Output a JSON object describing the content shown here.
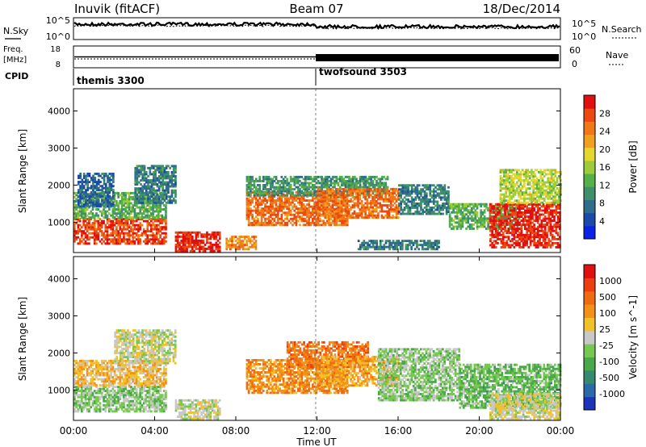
{
  "header": {
    "station": "Inuvik (fitACF)",
    "beam": "Beam 07",
    "date": "18/Dec/2014"
  },
  "strips": {
    "nsky_label": "N.Sky",
    "nsearch_label": "N.Search",
    "nsky_ticks": [
      "10^5",
      "10^0"
    ],
    "nsky_right_ticks": [
      "10^5",
      "10^0"
    ],
    "freq_label": "Freq.",
    "freq_unit": "[MHz]",
    "freq_ticks": [
      "18",
      "8"
    ],
    "nave_label": "Nave",
    "nave_ticks": [
      "60",
      "0"
    ],
    "cpid_label": "CPID",
    "cpid_entries": [
      {
        "name": "themis 3300",
        "start_hour": 0
      },
      {
        "name": "twofsound 3503",
        "start_hour": 12
      }
    ]
  },
  "axes": {
    "ylabel": "Slant Range [km]",
    "xlabel": "Time UT",
    "y_ticks": [
      "1000",
      "2000",
      "3000",
      "4000"
    ],
    "x_ticks": [
      "00:00",
      "04:00",
      "08:00",
      "12:00",
      "16:00",
      "20:00",
      "00:00"
    ]
  },
  "colorbars": {
    "power": {
      "label": "Power [dB]",
      "ticks": [
        "28",
        "24",
        "20",
        "16",
        "12",
        "8",
        "4"
      ],
      "colors": [
        "#0a22e6",
        "#1b4aa8",
        "#2f6d8a",
        "#3f8f6a",
        "#55b04a",
        "#9ccc3a",
        "#e2d830",
        "#f0a020",
        "#f07818",
        "#ea4a10",
        "#e01010"
      ]
    },
    "velocity": {
      "label": "Velocity [m s^-1]",
      "ticks": [
        "1000",
        "500",
        "100",
        "25",
        "-25",
        "-100",
        "-500",
        "-1000"
      ],
      "colors": [
        "#1c35b8",
        "#2a6aa8",
        "#358a6e",
        "#48a84a",
        "#76c850",
        "#c8c8c8",
        "#f2c028",
        "#f39018",
        "#f06a12",
        "#ec3e10",
        "#e01010"
      ]
    }
  },
  "chart_data": [
    {
      "type": "heatmap",
      "title": "Power",
      "xlabel": "Time UT",
      "ylabel": "Slant Range [km]",
      "xlim": [
        0,
        24
      ],
      "ylim": [
        180,
        4600
      ],
      "zlabel": "Power [dB]",
      "zlim": [
        0,
        30
      ],
      "series": [
        {
          "t": [
            0,
            4.5
          ],
          "range": [
            400,
            1100
          ],
          "value": 26
        },
        {
          "t": [
            0,
            4.5
          ],
          "range": [
            1100,
            1800
          ],
          "value": 12
        },
        {
          "t": [
            0.2,
            2
          ],
          "range": [
            1400,
            2300
          ],
          "value": 6
        },
        {
          "t": [
            3,
            5
          ],
          "range": [
            1500,
            2500
          ],
          "value": 8
        },
        {
          "t": [
            5,
            7.2
          ],
          "range": [
            200,
            700
          ],
          "value": 28
        },
        {
          "t": [
            7.5,
            9
          ],
          "range": [
            250,
            600
          ],
          "value": 22
        },
        {
          "t": [
            8.5,
            13.5
          ],
          "range": [
            900,
            1800
          ],
          "value": 24
        },
        {
          "t": [
            8.5,
            15.5
          ],
          "range": [
            1700,
            2200
          ],
          "value": 10
        },
        {
          "t": [
            12,
            16
          ],
          "range": [
            1100,
            1900
          ],
          "value": 24
        },
        {
          "t": [
            14,
            18
          ],
          "range": [
            250,
            500
          ],
          "value": 8
        },
        {
          "t": [
            16,
            18.5
          ],
          "range": [
            1200,
            2000
          ],
          "value": 8
        },
        {
          "t": [
            18.5,
            22
          ],
          "range": [
            800,
            1500
          ],
          "value": 12
        },
        {
          "t": [
            20.5,
            24
          ],
          "range": [
            300,
            1500
          ],
          "value": 28
        },
        {
          "t": [
            21,
            24
          ],
          "range": [
            1500,
            2400
          ],
          "value": 16
        }
      ]
    },
    {
      "type": "heatmap",
      "title": "Velocity",
      "xlabel": "Time UT",
      "ylabel": "Slant Range [km]",
      "xlim": [
        0,
        24
      ],
      "ylim": [
        180,
        4600
      ],
      "zlabel": "Velocity [m s^-1]",
      "zlim": [
        -1000,
        1000
      ],
      "series": [
        {
          "t": [
            0,
            4.5
          ],
          "range": [
            400,
            1100
          ],
          "value": -150
        },
        {
          "t": [
            0,
            4.5
          ],
          "range": [
            1100,
            1800
          ],
          "value": 200
        },
        {
          "t": [
            2,
            5
          ],
          "range": [
            1700,
            2600
          ],
          "value": 0
        },
        {
          "t": [
            5,
            7.2
          ],
          "range": [
            200,
            700
          ],
          "value": 0
        },
        {
          "t": [
            8.5,
            13.5
          ],
          "range": [
            900,
            1800
          ],
          "value": 400
        },
        {
          "t": [
            10.5,
            14.5
          ],
          "range": [
            1600,
            2300
          ],
          "value": 500
        },
        {
          "t": [
            12,
            16
          ],
          "range": [
            1100,
            1900
          ],
          "value": 300
        },
        {
          "t": [
            15,
            19
          ],
          "range": [
            700,
            2100
          ],
          "value": -150
        },
        {
          "t": [
            19,
            24
          ],
          "range": [
            500,
            1700
          ],
          "value": -250
        },
        {
          "t": [
            20.5,
            24
          ],
          "range": [
            200,
            900
          ],
          "value": 50
        }
      ]
    }
  ]
}
